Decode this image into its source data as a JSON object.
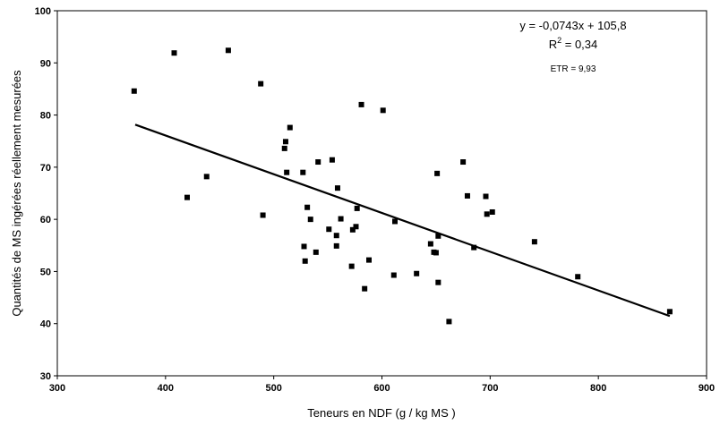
{
  "chart_data": {
    "type": "scatter",
    "xlabel": "Teneurs en NDF (g / kg MS )",
    "ylabel": "Quantités de MS ingérées réellement mesurées",
    "xlim": [
      300,
      900
    ],
    "ylim": [
      30,
      100
    ],
    "xticks": [
      "300",
      "400",
      "500",
      "600",
      "700",
      "800",
      "900"
    ],
    "yticks": [
      "30",
      "40",
      "50",
      "60",
      "70",
      "80",
      "90",
      "100"
    ],
    "grid": false,
    "marker": "square",
    "marker_color": "#000000",
    "annotations": {
      "equation": "y = -0,0743x + 105,8",
      "r2_base": "R",
      "r2_exp": "2",
      "r2_rest": " = 0,34",
      "etr": "ETR = 9,93"
    },
    "trendline": {
      "slope": -0.0743,
      "intercept": 105.8,
      "x_range": [
        372,
        866
      ]
    },
    "points": [
      {
        "x": 371,
        "y": 84.6
      },
      {
        "x": 408,
        "y": 91.9
      },
      {
        "x": 420,
        "y": 64.2
      },
      {
        "x": 438,
        "y": 68.2
      },
      {
        "x": 458,
        "y": 92.4
      },
      {
        "x": 488,
        "y": 86.0
      },
      {
        "x": 490,
        "y": 60.8
      },
      {
        "x": 510,
        "y": 73.6
      },
      {
        "x": 511,
        "y": 74.9
      },
      {
        "x": 512,
        "y": 69.0
      },
      {
        "x": 515,
        "y": 77.6
      },
      {
        "x": 527,
        "y": 69.0
      },
      {
        "x": 528,
        "y": 54.8
      },
      {
        "x": 529,
        "y": 52.0
      },
      {
        "x": 531,
        "y": 62.3
      },
      {
        "x": 534,
        "y": 60.0
      },
      {
        "x": 539,
        "y": 53.7
      },
      {
        "x": 541,
        "y": 71.0
      },
      {
        "x": 551,
        "y": 58.1
      },
      {
        "x": 554,
        "y": 71.4
      },
      {
        "x": 558,
        "y": 54.9
      },
      {
        "x": 558,
        "y": 56.9
      },
      {
        "x": 559,
        "y": 66.0
      },
      {
        "x": 562,
        "y": 60.1
      },
      {
        "x": 572,
        "y": 51.0
      },
      {
        "x": 573,
        "y": 58.0
      },
      {
        "x": 576,
        "y": 58.6
      },
      {
        "x": 577,
        "y": 62.1
      },
      {
        "x": 581,
        "y": 82.0
      },
      {
        "x": 584,
        "y": 46.7
      },
      {
        "x": 588,
        "y": 52.2
      },
      {
        "x": 601,
        "y": 80.9
      },
      {
        "x": 611,
        "y": 49.3
      },
      {
        "x": 612,
        "y": 59.6
      },
      {
        "x": 632,
        "y": 49.6
      },
      {
        "x": 645,
        "y": 55.3
      },
      {
        "x": 648,
        "y": 53.7
      },
      {
        "x": 650,
        "y": 53.6
      },
      {
        "x": 651,
        "y": 68.8
      },
      {
        "x": 652,
        "y": 47.9
      },
      {
        "x": 652,
        "y": 56.8
      },
      {
        "x": 662,
        "y": 40.4
      },
      {
        "x": 675,
        "y": 71.0
      },
      {
        "x": 679,
        "y": 64.5
      },
      {
        "x": 685,
        "y": 54.6
      },
      {
        "x": 696,
        "y": 64.4
      },
      {
        "x": 697,
        "y": 61.0
      },
      {
        "x": 702,
        "y": 61.4
      },
      {
        "x": 741,
        "y": 55.7
      },
      {
        "x": 781,
        "y": 49.0
      },
      {
        "x": 866,
        "y": 42.3
      }
    ]
  }
}
